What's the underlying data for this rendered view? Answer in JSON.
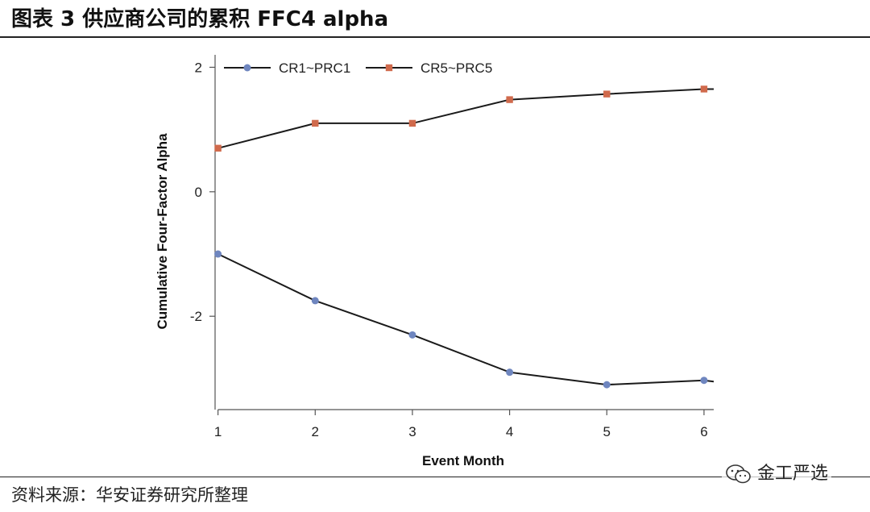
{
  "header": {
    "title": "图表 3 供应商公司的累积 FFC4 alpha"
  },
  "footer": {
    "source": "资料来源：华安证券研究所整理",
    "watermark": "金工严选"
  },
  "icons": {
    "watermark_icon": "wechat-icon"
  },
  "colors": {
    "series1": "#6F86BF",
    "series2": "#D06A4C",
    "line": "#1a1a1a",
    "axis": "#555555"
  },
  "chart_data": {
    "type": "line",
    "title": "",
    "xlabel": "Event Month",
    "ylabel": "Cumulative Four-Factor Alpha",
    "x": [
      1,
      2,
      3,
      4,
      5,
      6
    ],
    "xticks": [
      "1",
      "2",
      "3",
      "4",
      "5",
      "6"
    ],
    "yticks": [
      "-2",
      "0",
      "2"
    ],
    "ytick_values": [
      -2,
      0,
      2
    ],
    "ylim": [
      -3.5,
      2.2
    ],
    "xlim": [
      0.97,
      6.1
    ],
    "legend_position": "top",
    "series": [
      {
        "name": "CR1~PRC1",
        "marker": "circle",
        "values": [
          -1.0,
          -1.75,
          -2.3,
          -2.9,
          -3.1,
          -3.03
        ],
        "end_value": -3.05
      },
      {
        "name": "CR5~PRC5",
        "marker": "square",
        "values": [
          0.7,
          1.1,
          1.1,
          1.48,
          1.57,
          1.65
        ],
        "end_value": 1.65
      }
    ]
  }
}
